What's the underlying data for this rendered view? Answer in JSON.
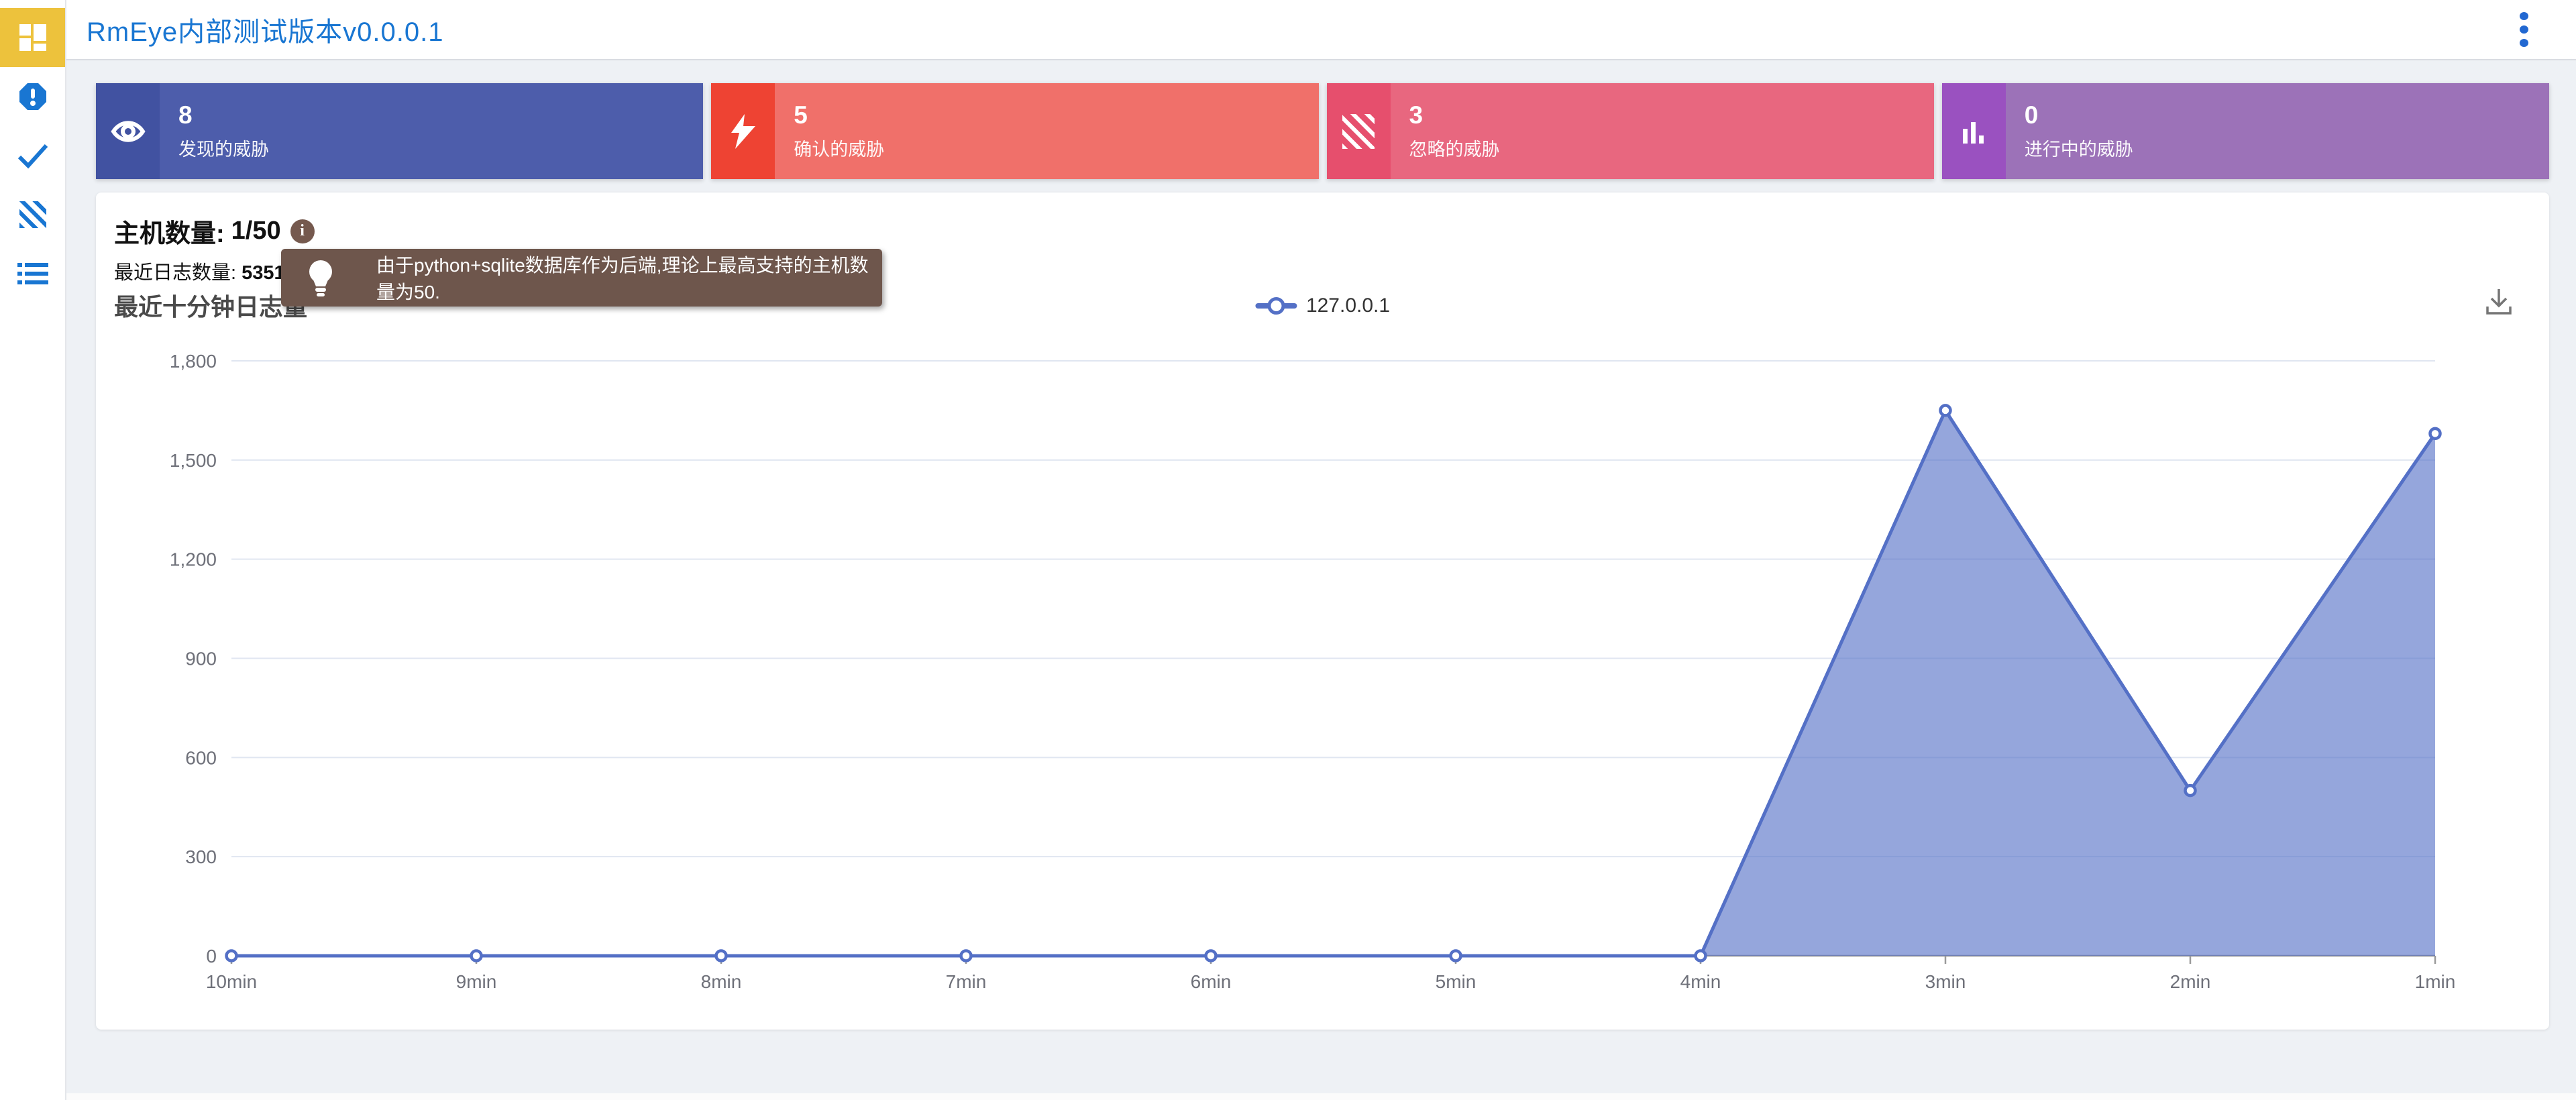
{
  "header": {
    "title": "RmEye内部测试版本v0.0.0.1",
    "accent_color": "#1976d2"
  },
  "sidebar": {
    "active_bg": "#edc23c",
    "icon_color": "#1976d2",
    "items": [
      {
        "icon": "dashboard-icon",
        "active": true
      },
      {
        "icon": "alert-octagon-icon",
        "active": false
      },
      {
        "icon": "checkmark-icon",
        "active": false
      },
      {
        "icon": "diagonal-stripes-icon",
        "active": false
      },
      {
        "icon": "list-icon",
        "active": false
      }
    ]
  },
  "stats": [
    {
      "value": "8",
      "label": "发现的威胁",
      "icon": "eye-icon",
      "body_color": "#4d5dab",
      "icon_bg": "#4152a1"
    },
    {
      "value": "5",
      "label": "确认的威胁",
      "icon": "lightning-icon",
      "body_color": "#f0706a",
      "icon_bg": "#ee4333"
    },
    {
      "value": "3",
      "label": "忽略的威胁",
      "icon": "stripes-icon",
      "body_color": "#e8677f",
      "icon_bg": "#e64f6d"
    },
    {
      "value": "0",
      "label": "进行中的威胁",
      "icon": "bar-chart-icon",
      "body_color": "#9c72b8",
      "icon_bg": "#9a51c0"
    }
  ],
  "overview": {
    "host_count_label": "主机数量:",
    "host_count_value": "1/50",
    "log_count_label": "最近日志数量:",
    "log_count_value": "5351",
    "tooltip_text": "由于python+sqlite数据库作为后端,理论上最高支持的主机数量为50.",
    "tooltip_bg": "#6e564c"
  },
  "chart_data": {
    "type": "area",
    "title": "最近十分钟日志量",
    "categories": [
      "10min",
      "9min",
      "8min",
      "7min",
      "6min",
      "5min",
      "4min",
      "3min",
      "2min",
      "1min"
    ],
    "series": [
      {
        "name": "127.0.0.1",
        "color": "#5470c6",
        "values": [
          0,
          0,
          0,
          0,
          0,
          0,
          0,
          1650,
          500,
          1580
        ]
      }
    ],
    "ylim": [
      0,
      1800
    ],
    "yticks": [
      0,
      300,
      600,
      900,
      1200,
      1500,
      1800
    ],
    "xlabel": "",
    "ylabel": "",
    "grid": true,
    "legend_position": "top-center",
    "area_opacity": 0.62,
    "axis_text_color": "#6E7079",
    "grid_color": "#E0E6F1"
  }
}
